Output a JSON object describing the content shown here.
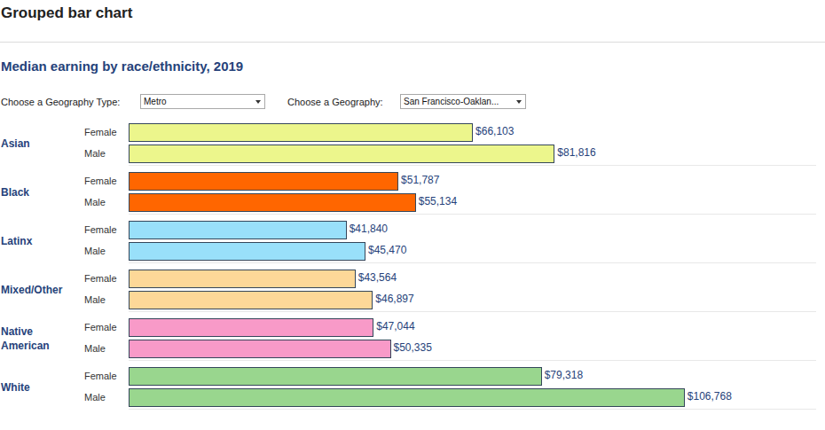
{
  "header": "Grouped bar chart",
  "controls": [
    {
      "label": "Choose a Geography Type:",
      "value": "Metro"
    },
    {
      "label": "Choose a Geography:",
      "value": "San Francisco-Oaklan..."
    }
  ],
  "chart_data": {
    "type": "bar",
    "orientation": "horizontal",
    "title": "Median earning by race/ethnicity, 2019",
    "categories": [
      "Asian",
      "Black",
      "Latinx",
      "Mixed/Other",
      "Native American",
      "White"
    ],
    "series": [
      {
        "name": "Female",
        "colors": [
          "#ecf68c",
          "#ff6600",
          "#99e0fa",
          "#fdd898",
          "#f89ac8",
          "#99d68e"
        ],
        "values": [
          66103,
          51787,
          41840,
          43564,
          47044,
          79318
        ],
        "value_labels": [
          "$66,103",
          "$51,787",
          "$41,840",
          "$43,564",
          "$47,044",
          "$79,318"
        ]
      },
      {
        "name": "Male",
        "colors": [
          "#ecf68c",
          "#ff6600",
          "#99e0fa",
          "#fdd898",
          "#f89ac8",
          "#99d68e"
        ],
        "values": [
          81816,
          55134,
          45470,
          46897,
          50335,
          106768
        ],
        "value_labels": [
          "$81,816",
          "$55,134",
          "$45,470",
          "$46,897",
          "$50,335",
          "$106,768"
        ]
      }
    ],
    "xlim": [
      0,
      132000
    ],
    "data_labels": true,
    "tick_labels": "y"
  }
}
